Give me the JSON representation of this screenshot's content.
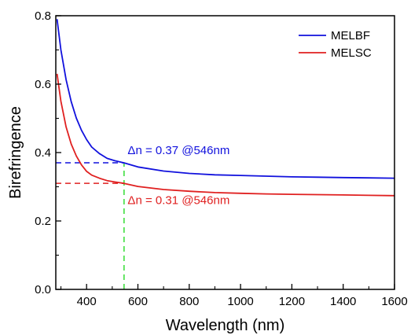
{
  "chart_data": {
    "type": "line",
    "xlabel": "Wavelength (nm)",
    "ylabel": "Birefringence",
    "xlim": [
      280,
      1600
    ],
    "ylim": [
      0.0,
      0.8
    ],
    "xticks": [
      400,
      600,
      800,
      1000,
      1200,
      1400,
      1600
    ],
    "xtick_labels": [
      "400",
      "600",
      "800",
      "1000",
      "1200",
      "1400",
      "1600"
    ],
    "yticks": [
      0.0,
      0.2,
      0.4,
      0.6,
      0.8
    ],
    "ytick_labels": [
      "0.0",
      "0.2",
      "0.4",
      "0.6",
      "0.8"
    ],
    "grid": false,
    "legend_position": "top-right",
    "series": [
      {
        "name": "MELBF",
        "color": "#1111dd",
        "x": [
          285,
          300,
          320,
          340,
          360,
          380,
          400,
          420,
          450,
          480,
          510,
          546,
          600,
          700,
          800,
          900,
          1000,
          1100,
          1200,
          1300,
          1400,
          1500,
          1600
        ],
        "y": [
          0.79,
          0.7,
          0.613,
          0.549,
          0.501,
          0.465,
          0.438,
          0.416,
          0.397,
          0.383,
          0.376,
          0.37,
          0.358,
          0.346,
          0.339,
          0.335,
          0.333,
          0.331,
          0.329,
          0.328,
          0.327,
          0.326,
          0.325
        ]
      },
      {
        "name": "MELSC",
        "color": "#e02020",
        "x": [
          285,
          300,
          320,
          340,
          360,
          380,
          400,
          420,
          450,
          480,
          510,
          546,
          600,
          700,
          800,
          900,
          1000,
          1100,
          1200,
          1300,
          1400,
          1500,
          1600
        ],
        "y": [
          0.63,
          0.55,
          0.475,
          0.425,
          0.39,
          0.364,
          0.345,
          0.334,
          0.325,
          0.318,
          0.314,
          0.31,
          0.301,
          0.292,
          0.287,
          0.283,
          0.281,
          0.279,
          0.278,
          0.277,
          0.276,
          0.275,
          0.274
        ]
      }
    ],
    "reference_lines": [
      {
        "orientation": "horizontal",
        "y": 0.37,
        "x_from": 280,
        "x_to": 546,
        "color": "#1111dd",
        "style": "dashed"
      },
      {
        "orientation": "horizontal",
        "y": 0.31,
        "x_from": 280,
        "x_to": 546,
        "color": "#e02020",
        "style": "dashed"
      },
      {
        "orientation": "vertical",
        "x": 546,
        "y_from": 0.0,
        "y_to": 0.37,
        "color": "#33dd33",
        "style": "dashed"
      }
    ],
    "annotations": [
      {
        "text": "Δn = 0.37 @546nm",
        "x": 560,
        "y": 0.395,
        "color": "#1111dd"
      },
      {
        "text": "Δn = 0.31 @546nm",
        "x": 560,
        "y": 0.25,
        "color": "#e02020"
      }
    ]
  }
}
